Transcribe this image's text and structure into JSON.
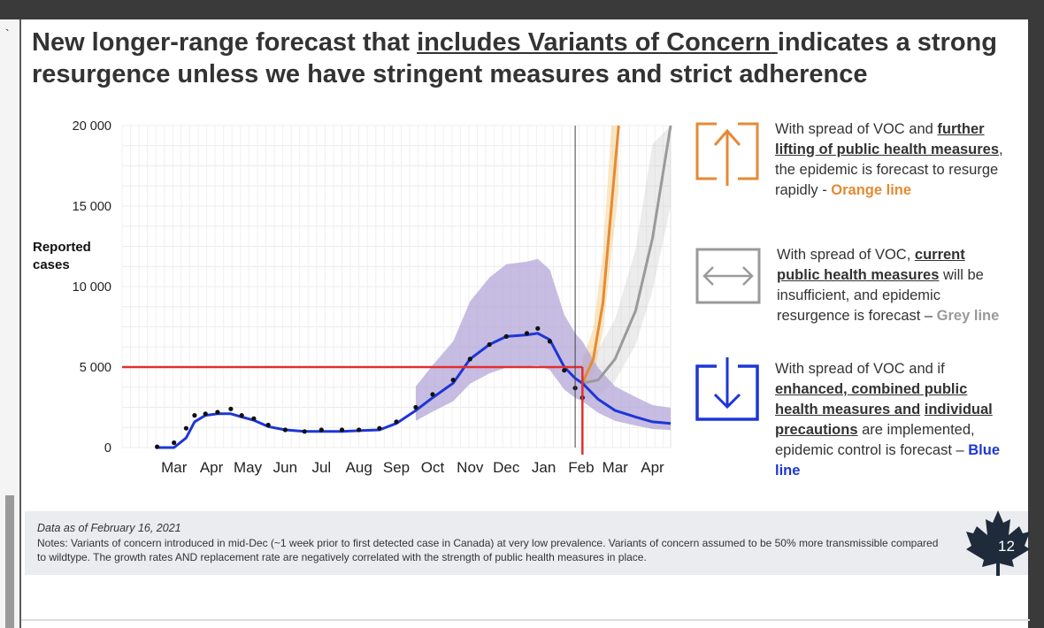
{
  "title": {
    "part1": "New longer-range forecast that ",
    "underlined": "includes Variants of Concern ",
    "part2": "indicates a strong resurgence unless we have stringent measures and strict adherence"
  },
  "colors": {
    "orange": "#E58A33",
    "grey": "#9a9a9a",
    "blue": "#1d36d6",
    "red_reference": "#e03030",
    "band_purple": "#b4a6d8"
  },
  "chart_data": {
    "type": "line",
    "ylabel": "Reported cases",
    "ylim": [
      0,
      20000
    ],
    "yticks": [
      0,
      5000,
      10000,
      15000,
      20000
    ],
    "ytick_labels": [
      "0",
      "5 000",
      "10 000",
      "15 000",
      "20 000"
    ],
    "xlim": [
      "2020-02-01",
      "2021-04-30"
    ],
    "xtick_labels": [
      "Mar",
      "Apr",
      "May",
      "Jun",
      "Jul",
      "Aug",
      "Sep",
      "Oct",
      "Nov",
      "Dec",
      "Jan",
      "Feb",
      "Mar",
      "Apr"
    ],
    "xticks": [
      "2020-03-15",
      "2020-04-15",
      "2020-05-15",
      "2020-06-15",
      "2020-07-15",
      "2020-08-15",
      "2020-09-15",
      "2020-10-15",
      "2020-11-15",
      "2020-12-15",
      "2021-01-15",
      "2021-02-15",
      "2021-03-15",
      "2021-04-15"
    ],
    "grid": true,
    "data_as_of": "2021-02-16",
    "reference_line": {
      "date": "2021-02-16",
      "color": "#e03030"
    },
    "reported_cases": {
      "x": [
        "2020-03-01",
        "2020-03-15",
        "2020-03-25",
        "2020-04-01",
        "2020-04-10",
        "2020-04-20",
        "2020-05-01",
        "2020-05-10",
        "2020-05-20",
        "2020-06-01",
        "2020-06-15",
        "2020-07-01",
        "2020-07-15",
        "2020-08-01",
        "2020-08-15",
        "2020-09-01",
        "2020-09-15",
        "2020-10-01",
        "2020-10-15",
        "2020-11-01",
        "2020-11-15",
        "2020-12-01",
        "2020-12-15",
        "2021-01-01",
        "2021-01-10",
        "2021-01-20",
        "2021-02-01",
        "2021-02-10",
        "2021-02-16"
      ],
      "y": [
        50,
        300,
        1200,
        2000,
        2100,
        2200,
        2400,
        2000,
        1800,
        1400,
        1100,
        1000,
        1100,
        1100,
        1100,
        1200,
        1600,
        2500,
        3300,
        4200,
        5500,
        6400,
        6900,
        7100,
        7400,
        6600,
        4800,
        3700,
        3100
      ]
    },
    "series": [
      {
        "name": "Orange line",
        "color": "#E58A33",
        "x": [
          "2021-02-16",
          "2021-02-25",
          "2021-03-05",
          "2021-03-12",
          "2021-03-18"
        ],
        "y": [
          4000,
          5500,
          9000,
          15000,
          20000
        ]
      },
      {
        "name": "Grey line",
        "color": "#9a9a9a",
        "x": [
          "2021-02-16",
          "2021-03-01",
          "2021-03-15",
          "2021-04-01",
          "2021-04-15",
          "2021-04-30"
        ],
        "y": [
          4000,
          4200,
          5500,
          8500,
          13000,
          20000
        ]
      },
      {
        "name": "Blue line",
        "color": "#1d36d6",
        "x": [
          "2020-03-01",
          "2020-03-15",
          "2020-03-25",
          "2020-04-01",
          "2020-04-10",
          "2020-04-20",
          "2020-05-01",
          "2020-05-10",
          "2020-05-20",
          "2020-06-01",
          "2020-06-15",
          "2020-07-01",
          "2020-07-15",
          "2020-08-01",
          "2020-08-15",
          "2020-09-01",
          "2020-09-15",
          "2020-10-01",
          "2020-10-15",
          "2020-11-01",
          "2020-11-15",
          "2020-12-01",
          "2020-12-15",
          "2021-01-01",
          "2021-01-10",
          "2021-01-20",
          "2021-02-01",
          "2021-02-10",
          "2021-02-16",
          "2021-03-01",
          "2021-03-15",
          "2021-04-01",
          "2021-04-15",
          "2021-04-30"
        ],
        "y": [
          0,
          0,
          600,
          1600,
          2000,
          2100,
          2100,
          1900,
          1700,
          1300,
          1100,
          1000,
          1000,
          1000,
          1050,
          1100,
          1500,
          2300,
          3100,
          4000,
          5500,
          6400,
          6900,
          7000,
          7100,
          6700,
          5000,
          4300,
          4000,
          3000,
          2300,
          1900,
          1600,
          1500
        ]
      }
    ]
  },
  "panels": {
    "orange": {
      "t1": "With spread of VOC and ",
      "b": "further lifting of public health measures",
      "t2": ", the epidemic is forecast to resurge rapidly - ",
      "tag": "Orange line"
    },
    "grey": {
      "t1": "With spread of VOC, ",
      "b": "current public health measures",
      "t2": " will be insufficient, and epidemic resurgence is forecast – ",
      "tag": "Grey line"
    },
    "blue": {
      "t1": "With spread of VOC and if ",
      "b1": "enhanced, combined public health measures and",
      "t_mid": " ",
      "b2": "individual precautions",
      "t2": " are implemented, epidemic control is forecast – ",
      "tag": "Blue line"
    }
  },
  "icons": {
    "orange": "arrow-up-icon",
    "grey": "arrow-left-right-icon",
    "blue": "arrow-down-icon",
    "page": "maple-leaf-icon"
  },
  "footer": {
    "date": "Data as of February 16, 2021",
    "notes": "Notes: Variants of concern introduced in mid-Dec (~1 week prior to first detected case in Canada) at very low prevalence. Variants of concern assumed to be 50% more transmissible compared to wildtype. The growth rates AND replacement rate are negatively correlated with the strength of public health measures in place."
  },
  "page_number": "12"
}
